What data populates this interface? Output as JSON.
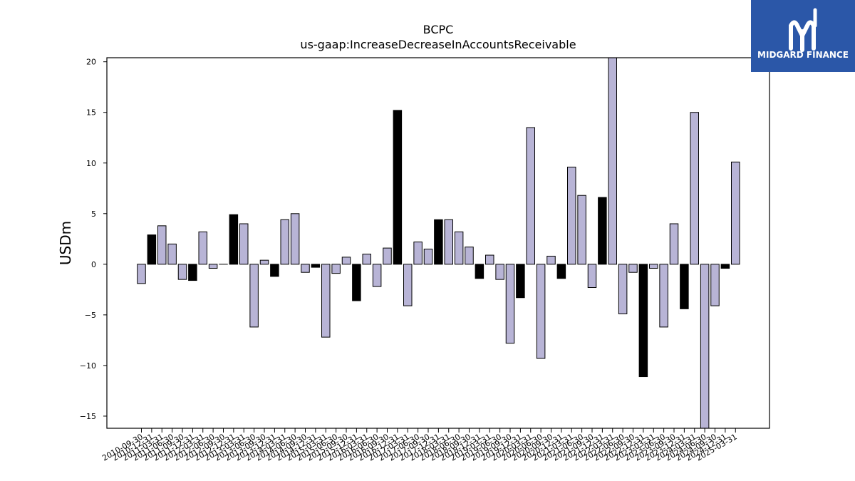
{
  "chart_data": {
    "type": "bar",
    "title": "BCPC",
    "subtitle": "us-gaap:IncreaseDecreaseInAccountsReceivable",
    "xlabel": "",
    "ylabel": "USDm",
    "ylim": [
      -16.2,
      20.4
    ],
    "yticks": [
      -15,
      -10,
      -5,
      0,
      5,
      10,
      15,
      20
    ],
    "grid": false,
    "colors": {
      "quarter": "#b8b4d6",
      "fiscal_year_end": "#000000",
      "edge": "#000000"
    },
    "categories": [
      "2010-09-30",
      "2010-12-31",
      "2011-03-31",
      "2011-06-30",
      "2011-09-30",
      "2011-12-31",
      "2012-03-31",
      "2012-06-30",
      "2012-09-30",
      "2012-12-31",
      "2013-03-31",
      "2013-06-30",
      "2013-09-30",
      "2013-12-31",
      "2014-03-31",
      "2014-06-30",
      "2014-09-30",
      "2014-12-31",
      "2015-03-31",
      "2015-06-30",
      "2015-09-30",
      "2015-12-31",
      "2016-03-31",
      "2016-06-30",
      "2016-09-30",
      "2016-12-31",
      "2017-03-31",
      "2017-06-30",
      "2017-09-30",
      "2017-12-31",
      "2018-03-31",
      "2018-06-30",
      "2018-09-30",
      "2018-12-31",
      "2019-03-31",
      "2019-06-30",
      "2019-09-30",
      "2019-12-31",
      "2020-03-31",
      "2020-06-30",
      "2020-09-30",
      "2020-12-31",
      "2021-03-31",
      "2021-06-30",
      "2021-09-30",
      "2021-12-31",
      "2022-03-31",
      "2022-06-30",
      "2022-09-30",
      "2022-12-31",
      "2023-03-31",
      "2023-06-30",
      "2023-09-30",
      "2023-12-31",
      "2024-03-31",
      "2024-06-30",
      "2024-09-30",
      "2024-12-31",
      "2025-03-31"
    ],
    "tick_labels": [
      "2010-09-30",
      "2010-12-31",
      "2011-03-31",
      "2011-06-30",
      "2011-09-30",
      "2011-12-31",
      "2012-03-31",
      "2012-06-30",
      "2012-09-30",
      "2012-12-31",
      "2013-03-31",
      "2013-06-30",
      "2013-09-30",
      "2013-12-31",
      "2014-03-31",
      "2014-06-30",
      "2014-09-30",
      "2014-12-31",
      "2015-03-31",
      "2015-06-30",
      "2015-09-30",
      "2015-12-31",
      "2016-03-31",
      "2016-06-30",
      "2016-09-30",
      "2016-12-31",
      "2017-03-31",
      "2017-06-30",
      "2017-09-30",
      "2017-12-31",
      "2018-03-31",
      "2018-06-30",
      "2018-09-30",
      "2018-12-31",
      "2019-03-31",
      "2019-06-30",
      "2019-09-30",
      "2019-12-31",
      "2020-03-31",
      "2020-06-30",
      "2020-09-30",
      "2020-12-31",
      "2021-03-31",
      "2021-06-30",
      "2021-09-30",
      "2021-12-31",
      "2022-03-31",
      "2022-06-30",
      "2022-09-30",
      "2022-12-31",
      "2023-03-31",
      "2023-06-30",
      "2023-09-30",
      "2023-12-31",
      "2024-03-31",
      "2024-06-30",
      "2024-09-30",
      "2024-12-31",
      "2025-03-31"
    ],
    "values": [
      -1.9,
      2.9,
      3.8,
      2.0,
      -1.5,
      -1.6,
      3.2,
      -0.4,
      0.0,
      4.9,
      4.0,
      -6.2,
      0.4,
      -1.2,
      4.4,
      5.0,
      -0.8,
      -0.3,
      -7.2,
      -0.9,
      0.7,
      -3.6,
      1.0,
      -2.2,
      1.6,
      15.2,
      -4.1,
      2.2,
      1.5,
      4.4,
      4.4,
      3.2,
      1.7,
      -1.4,
      0.9,
      -1.5,
      -7.8,
      -3.3,
      13.5,
      -9.3,
      0.8,
      -1.4,
      9.6,
      6.8,
      -2.3,
      6.6,
      20.5,
      -4.9,
      -0.8,
      -11.1,
      -0.4,
      -6.2,
      4.0,
      -4.4,
      15.0,
      -16.3,
      -4.1,
      -0.4,
      10.1
    ],
    "bar_style": [
      "q",
      "y",
      "q",
      "q",
      "q",
      "y",
      "q",
      "q",
      "q",
      "y",
      "q",
      "q",
      "q",
      "y",
      "q",
      "q",
      "q",
      "y",
      "q",
      "q",
      "q",
      "y",
      "q",
      "q",
      "q",
      "y",
      "q",
      "q",
      "q",
      "y",
      "q",
      "q",
      "q",
      "y",
      "q",
      "q",
      "q",
      "y",
      "q",
      "q",
      "q",
      "y",
      "q",
      "q",
      "q",
      "y",
      "q",
      "q",
      "q",
      "y",
      "q",
      "q",
      "q",
      "y",
      "q",
      "q",
      "q",
      "y",
      "q"
    ]
  },
  "logo": {
    "text": "MIDGARD FINANCE",
    "background": "#2b57a8"
  }
}
